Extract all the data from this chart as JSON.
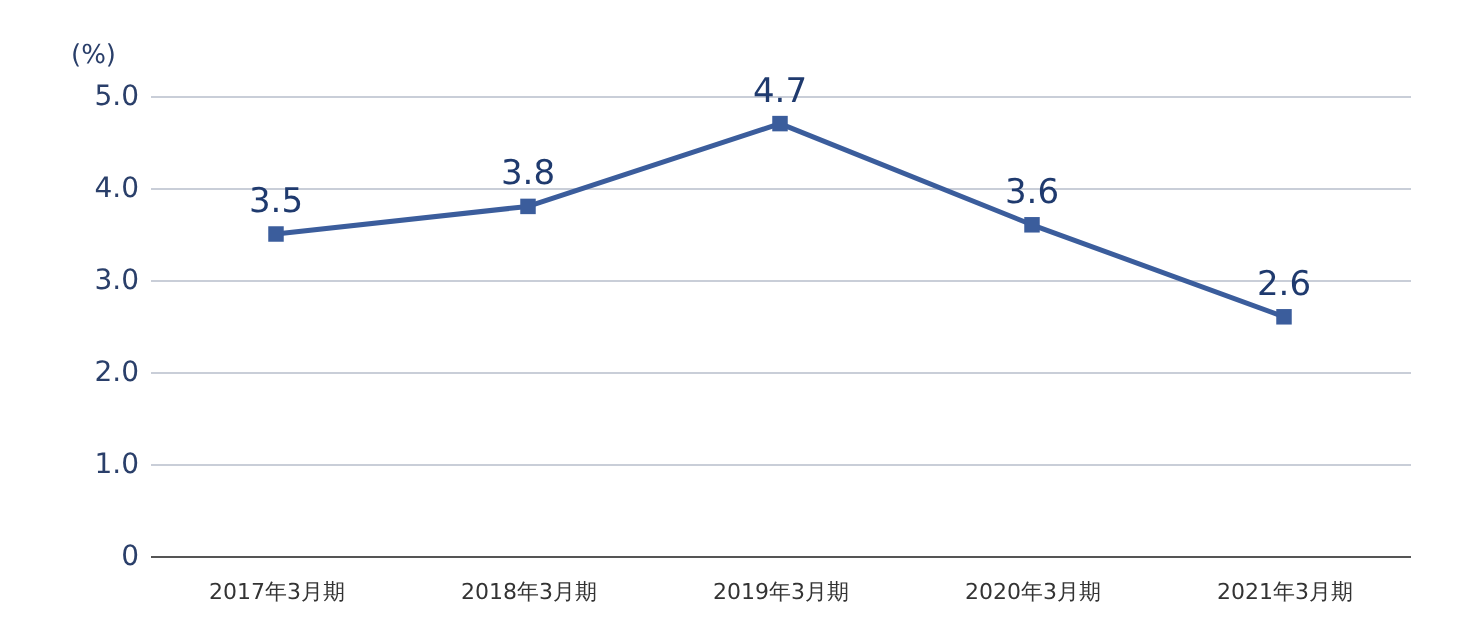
{
  "chart_data": {
    "type": "line",
    "ylabel": "(%)",
    "categories": [
      "2017年3月期",
      "2018年3月期",
      "2019年3月期",
      "2020年3月期",
      "2021年3月期"
    ],
    "series": [
      {
        "color": "#3b5d9c",
        "values": [
          3.5,
          3.8,
          4.7,
          3.6,
          2.6
        ]
      }
    ],
    "ylim": [
      0,
      5
    ],
    "yticks": [
      0,
      {
        "value": 1,
        "label": "1.0"
      },
      {
        "value": 2,
        "label": "2.0"
      },
      {
        "value": 3,
        "label": "3.0"
      },
      {
        "value": 4,
        "label": "4.0"
      },
      {
        "value": 5,
        "label": "5.0"
      }
    ],
    "grid": "y",
    "marker": "square",
    "line_style": "solid",
    "data_labels": true
  }
}
